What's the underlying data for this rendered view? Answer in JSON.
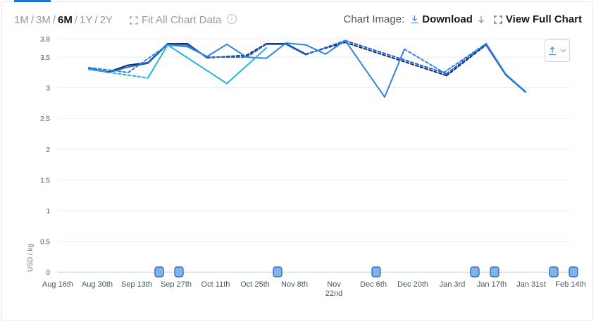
{
  "range_selector": {
    "options": [
      {
        "label": "1M",
        "active": false
      },
      {
        "label": "3M",
        "active": false
      },
      {
        "label": "6M",
        "active": true
      },
      {
        "label": "1Y",
        "active": false
      },
      {
        "label": "2Y",
        "active": false
      }
    ],
    "separator": "/"
  },
  "fit_all_label": "Fit All Chart Data",
  "chart_image": {
    "label": "Chart Image:",
    "download_label": "Download",
    "view_full_label": "View Full Chart"
  },
  "colors": {
    "dark_navy": "#0f2a6b",
    "mid_blue": "#1f63c8",
    "bright_blue": "#2f86e0",
    "cyan": "#22b3dd",
    "marker_fill": "#7fb2ee",
    "marker_stroke": "#2a5fa8",
    "grid": "#e9edf2"
  },
  "chart_data": {
    "type": "line",
    "xlabel": "",
    "ylabel": "USD / kg",
    "ylim": [
      0,
      3.8
    ],
    "yticks": [
      "0",
      "0.5",
      "1",
      "1.5",
      "2",
      "2.5",
      "3",
      "3.5",
      "3.8"
    ],
    "x_tick_labels": [
      "Aug 16th",
      "Aug 30th",
      "Sep 13th",
      "Sep 27th",
      "Oct 11th",
      "Oct 25th",
      "Nov 8th",
      "Nov 22nd",
      "Dec 6th",
      "Dec 20th",
      "Jan 3rd",
      "Jan 17th",
      "Jan 31st",
      "Feb 14th"
    ],
    "x_range": [
      "2024-08-16",
      "2025-02-14"
    ],
    "series": [
      {
        "color": "#0f2a6b",
        "points": [
          [
            "2024-08-27",
            3.31
          ],
          [
            "2024-09-03",
            3.26
          ],
          [
            "2024-09-10",
            3.37
          ],
          [
            "2024-09-17",
            3.41
          ],
          [
            "2024-09-24",
            3.72
          ],
          [
            "2024-10-01",
            3.72
          ],
          [
            "2024-10-08",
            3.49
          ],
          [
            "2024-10-22",
            3.53,
            "dashed"
          ],
          [
            "2024-10-29",
            3.72,
            "dashed"
          ],
          [
            "2024-11-05",
            3.72
          ],
          [
            "2024-11-12",
            3.55
          ],
          [
            "2024-11-26",
            3.74,
            "dashed"
          ],
          [
            "2025-01-01",
            3.2,
            "dashed"
          ],
          [
            "2025-01-15",
            3.7,
            "dashed"
          ],
          [
            "2025-01-22",
            3.21
          ],
          [
            "2025-01-29",
            2.93
          ]
        ]
      },
      {
        "color": "#1f63c8",
        "points": [
          [
            "2024-08-27",
            3.32
          ],
          [
            "2024-09-03",
            3.25
          ],
          [
            "2024-09-10",
            3.34
          ],
          [
            "2024-09-17",
            3.4
          ],
          [
            "2024-09-24",
            3.71
          ],
          [
            "2024-10-01",
            3.7
          ],
          [
            "2024-10-08",
            3.5
          ],
          [
            "2024-10-15",
            3.5,
            "dashed"
          ],
          [
            "2024-10-22",
            3.5,
            "dashed"
          ],
          [
            "2024-10-29",
            3.71,
            "dashed"
          ],
          [
            "2024-11-05",
            3.71
          ],
          [
            "2024-11-12",
            3.54
          ],
          [
            "2024-11-26",
            3.77,
            "dashed"
          ],
          [
            "2025-01-01",
            3.23,
            "dashed"
          ],
          [
            "2025-01-15",
            3.72,
            "dashed"
          ],
          [
            "2025-01-22",
            3.22
          ],
          [
            "2025-01-29",
            2.93
          ]
        ]
      },
      {
        "color": "#2f86e0",
        "points": [
          [
            "2024-08-27",
            3.33
          ],
          [
            "2024-09-10",
            3.25,
            "dashed"
          ],
          [
            "2024-09-24",
            3.7,
            "dashed"
          ],
          [
            "2024-10-01",
            3.67
          ],
          [
            "2024-10-08",
            3.51
          ],
          [
            "2024-10-15",
            3.71
          ],
          [
            "2024-10-22",
            3.5
          ],
          [
            "2024-10-29",
            3.48
          ],
          [
            "2024-11-05",
            3.73
          ],
          [
            "2024-11-12",
            3.7
          ],
          [
            "2024-11-19",
            3.55
          ],
          [
            "2024-11-26",
            3.77
          ],
          [
            "2024-12-10",
            2.85
          ],
          [
            "2024-12-17",
            3.63
          ],
          [
            "2024-12-31",
            3.25,
            "dashed"
          ],
          [
            "2025-01-15",
            3.72,
            "dashed"
          ],
          [
            "2025-01-22",
            3.22
          ],
          [
            "2025-01-29",
            2.94
          ]
        ]
      },
      {
        "color": "#22b3dd",
        "points": [
          [
            "2024-08-27",
            3.3
          ],
          [
            "2024-09-17",
            3.16,
            "dashed"
          ],
          [
            "2024-09-24",
            3.7
          ],
          [
            "2024-10-15",
            3.07
          ],
          [
            "2024-10-29",
            3.65
          ]
        ]
      }
    ],
    "event_markers": [
      "2024-09-21",
      "2024-09-28",
      "2024-11-02",
      "2024-12-07",
      "2025-01-11",
      "2025-01-18",
      "2025-02-08",
      "2025-02-15"
    ]
  }
}
